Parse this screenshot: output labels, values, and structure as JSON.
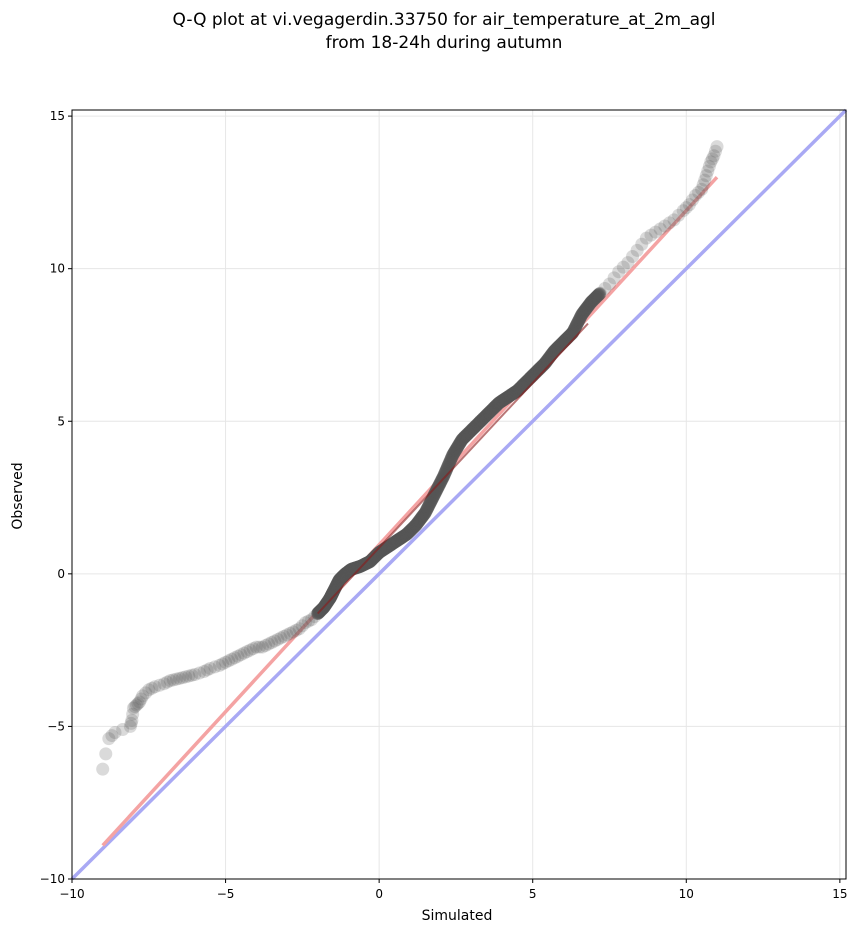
{
  "chart_data": {
    "type": "scatter",
    "title_line1": "Q-Q plot at vi.vegagerdin.33750 for air_temperature_at_2m_agl",
    "title_line2": "from 18-24h during autumn",
    "xlabel": "Simulated",
    "ylabel": "Observed",
    "xlim": [
      -10,
      15.2
    ],
    "ylim": [
      -10,
      15.2
    ],
    "xticks": [
      -10,
      -5,
      0,
      5,
      10,
      15
    ],
    "yticks": [
      -10,
      -5,
      0,
      5,
      10,
      15
    ],
    "xtick_labels": [
      "−10",
      "−5",
      "0",
      "5",
      "10",
      "15"
    ],
    "ytick_labels": [
      "−10",
      "−5",
      "0",
      "5",
      "10",
      "15"
    ],
    "grid": true,
    "colors": {
      "points": "#555555",
      "fit_line": "#f4a3a3",
      "identity_line": "#a9a9f4",
      "dense_fit_line": "#8b1a1a",
      "grid": "#e6e6e6"
    },
    "fit_line": {
      "x": [
        -9,
        11
      ],
      "y": [
        -8.9,
        13
      ]
    },
    "identity_line": {
      "x": [
        -10,
        15.2
      ],
      "y": [
        -10,
        15.2
      ]
    },
    "quantiles": {
      "x": [
        -9,
        -8.8,
        -8.6,
        -8.1,
        -8.05,
        -8.0,
        -7.9,
        -7.8,
        -7.7,
        -7.5,
        -7.3,
        -7.0,
        -6.8,
        -6.6,
        -6.4,
        -6.2,
        -6.0,
        -5.7,
        -5.5,
        -5.2,
        -5.0,
        -4.8,
        -4.6,
        -4.4,
        -4.2,
        -4.0,
        -3.8,
        -3.6,
        -3.4,
        -3.2,
        -3.0,
        -2.8,
        -2.6,
        -2.4,
        -2.2,
        -2.0,
        -1.8,
        -1.6,
        -1.5,
        -1.3,
        -1.1,
        -0.9,
        -0.6,
        -0.3,
        0,
        0.3,
        0.6,
        0.9,
        1.2,
        1.5,
        1.8,
        2.1,
        2.4,
        2.7,
        3.0,
        3.3,
        3.6,
        3.9,
        4.2,
        4.5,
        4.8,
        5.1,
        5.4,
        5.7,
        6.0,
        6.3,
        6.6,
        6.9,
        7.2,
        7.5,
        7.8,
        8.1,
        8.4,
        8.7,
        9.0,
        9.3,
        9.6,
        9.9,
        10.1,
        10.3,
        10.5,
        10.6,
        10.7,
        10.8,
        10.9,
        11.0
      ],
      "y": [
        -6.4,
        -5.4,
        -5.2,
        -5.0,
        -4.8,
        -4.4,
        -4.3,
        -4.2,
        -4.0,
        -3.8,
        -3.7,
        -3.6,
        -3.5,
        -3.45,
        -3.4,
        -3.35,
        -3.3,
        -3.2,
        -3.1,
        -3.0,
        -2.9,
        -2.8,
        -2.7,
        -2.6,
        -2.5,
        -2.4,
        -2.4,
        -2.3,
        -2.2,
        -2.1,
        -2.0,
        -1.9,
        -1.8,
        -1.6,
        -1.5,
        -1.3,
        -1.1,
        -0.8,
        -0.6,
        -0.2,
        0.0,
        0.15,
        0.25,
        0.4,
        0.7,
        0.9,
        1.1,
        1.3,
        1.6,
        2.0,
        2.6,
        3.2,
        3.9,
        4.4,
        4.7,
        5.0,
        5.3,
        5.6,
        5.8,
        6.0,
        6.3,
        6.6,
        6.9,
        7.3,
        7.6,
        7.9,
        8.5,
        8.9,
        9.2,
        9.5,
        9.9,
        10.2,
        10.6,
        11.0,
        11.2,
        11.4,
        11.6,
        11.9,
        12.1,
        12.4,
        12.6,
        12.9,
        13.2,
        13.5,
        13.7,
        14.0
      ]
    }
  }
}
